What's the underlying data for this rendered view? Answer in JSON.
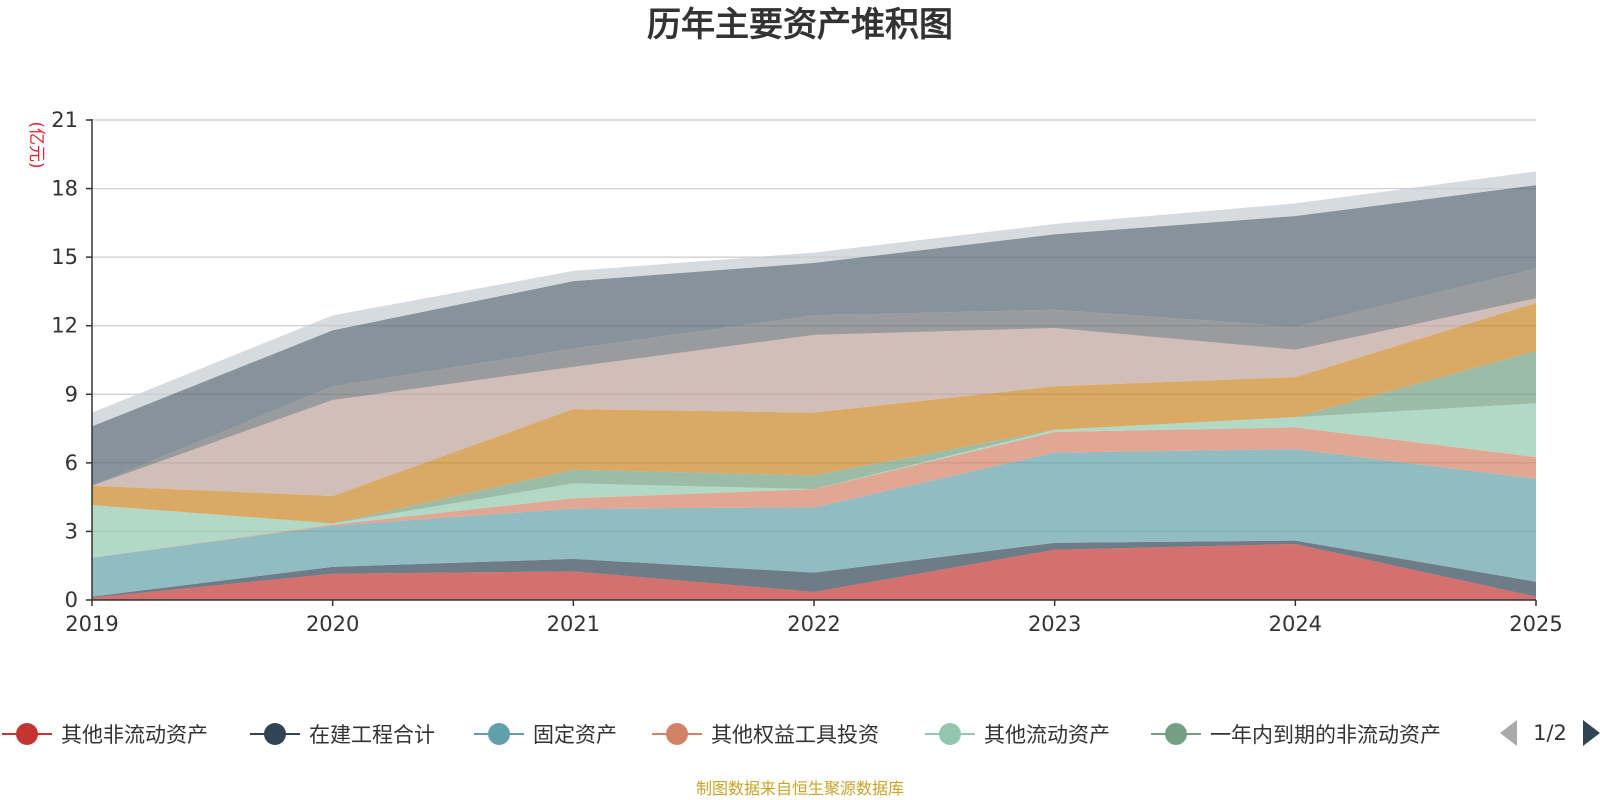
{
  "colors": {
    "title": "#333333",
    "unit": "#e0202e",
    "footer": "#c9a227",
    "grid": "#cccccc",
    "axis": "#333333",
    "page_arrow_active": "#2f4554",
    "page_arrow_inactive": "#aaaaaa"
  },
  "legend": {
    "placement": "bottom",
    "page": "1/2"
  },
  "footer": "制图数据来自恒生聚源数据库",
  "chart_data": {
    "type": "area",
    "stacked": true,
    "title": "历年主要资产堆积图",
    "yunit": "(亿元)",
    "xlabel": "",
    "ylabel": "",
    "categories": [
      "2019",
      "2020",
      "2021",
      "2022",
      "2023",
      "2024",
      "2025"
    ],
    "ylim": [
      0,
      21
    ],
    "yticks": [
      0,
      3,
      6,
      9,
      12,
      15,
      18,
      21
    ],
    "grid": true,
    "series": [
      {
        "name": "其他非流动资产",
        "color": "#c23531",
        "opacity": 0.7,
        "values": [
          0.1,
          1.15,
          1.25,
          0.35,
          2.2,
          2.45,
          0.15
        ]
      },
      {
        "name": "在建工程合计",
        "color": "#2f4554",
        "opacity": 0.7,
        "values": [
          0.05,
          0.3,
          0.55,
          0.85,
          0.3,
          0.15,
          0.65
        ]
      },
      {
        "name": "固定资产",
        "color": "#61a0a8",
        "opacity": 0.7,
        "values": [
          1.7,
          1.8,
          2.2,
          2.85,
          3.95,
          4.0,
          4.5
        ]
      },
      {
        "name": "其他权益工具投资",
        "color": "#d48265",
        "opacity": 0.7,
        "values": [
          0.0,
          0.05,
          0.45,
          0.8,
          0.9,
          0.95,
          0.95
        ]
      },
      {
        "name": "其他流动资产",
        "color": "#91c7ae",
        "opacity": 0.7,
        "values": [
          2.3,
          0.05,
          0.65,
          0.0,
          0.1,
          0.45,
          2.35
        ]
      },
      {
        "name": "一年内到期的非流动资产",
        "color": "#749f83",
        "opacity": 0.7,
        "values": [
          0.0,
          0.0,
          0.6,
          0.6,
          0.0,
          0.0,
          2.3
        ]
      },
      {
        "name": "",
        "color": "#ca8622",
        "opacity": 0.7,
        "values": [
          0.85,
          1.2,
          2.65,
          2.75,
          1.9,
          1.75,
          2.1
        ]
      },
      {
        "name": "",
        "color": "#bda29a",
        "opacity": 0.7,
        "values": [
          0.0,
          4.2,
          1.85,
          3.4,
          2.55,
          1.2,
          0.2
        ]
      },
      {
        "name": "",
        "color": "#6e7074",
        "opacity": 0.7,
        "values": [
          0.0,
          0.6,
          0.8,
          0.85,
          0.8,
          1.0,
          1.3
        ]
      },
      {
        "name": "",
        "color": "#546570",
        "opacity": 0.7,
        "values": [
          2.6,
          2.45,
          2.95,
          2.3,
          3.3,
          4.85,
          3.65
        ]
      },
      {
        "name": "",
        "color": "#c4ccd3",
        "opacity": 0.7,
        "values": [
          0.6,
          0.65,
          0.45,
          0.45,
          0.45,
          0.55,
          0.6
        ]
      }
    ]
  }
}
